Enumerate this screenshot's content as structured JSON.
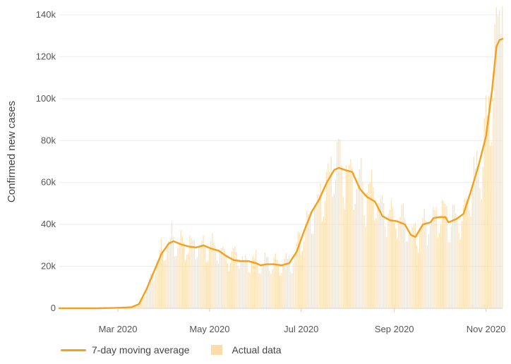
{
  "chart_data": {
    "type": "bar",
    "ylabel": "Confirmed new cases",
    "xlabel": "",
    "ylim": [
      0,
      140000
    ],
    "yticks": [
      0,
      20000,
      40000,
      60000,
      80000,
      100000,
      120000,
      140000
    ],
    "ytick_labels": [
      "0",
      "20k",
      "40k",
      "60k",
      "80k",
      "100k",
      "120k",
      "140k"
    ],
    "xlim": [
      "2020-01-22",
      "2020-11-12"
    ],
    "xticks": [
      "2020-03-01",
      "2020-05-01",
      "2020-07-01",
      "2020-09-01",
      "2020-11-01"
    ],
    "xtick_labels": [
      "Mar 2020",
      "May 2020",
      "Jul 2020",
      "Sep 2020",
      "Nov 2020"
    ],
    "grid": "horizontal",
    "legend_position": "bottom-left",
    "colors": {
      "moving_average": "#f59f1a",
      "actual": "#fbdcaa"
    },
    "series": [
      {
        "name": "7-day moving average",
        "type": "line",
        "points": [
          [
            "2020-01-22",
            0
          ],
          [
            "2020-02-15",
            0
          ],
          [
            "2020-03-01",
            200
          ],
          [
            "2020-03-10",
            500
          ],
          [
            "2020-03-15",
            2000
          ],
          [
            "2020-03-20",
            9000
          ],
          [
            "2020-03-25",
            17500
          ],
          [
            "2020-03-30",
            26000
          ],
          [
            "2020-04-04",
            31000
          ],
          [
            "2020-04-07",
            32000
          ],
          [
            "2020-04-12",
            30500
          ],
          [
            "2020-04-17",
            29500
          ],
          [
            "2020-04-22",
            29000
          ],
          [
            "2020-04-27",
            30000
          ],
          [
            "2020-05-02",
            28500
          ],
          [
            "2020-05-07",
            27500
          ],
          [
            "2020-05-12",
            25000
          ],
          [
            "2020-05-17",
            23000
          ],
          [
            "2020-05-22",
            22500
          ],
          [
            "2020-05-27",
            22500
          ],
          [
            "2020-06-01",
            21500
          ],
          [
            "2020-06-04",
            20500
          ],
          [
            "2020-06-08",
            21000
          ],
          [
            "2020-06-13",
            21000
          ],
          [
            "2020-06-18",
            20500
          ],
          [
            "2020-06-23",
            21500
          ],
          [
            "2020-06-28",
            27000
          ],
          [
            "2020-07-03",
            37000
          ],
          [
            "2020-07-08",
            46000
          ],
          [
            "2020-07-13",
            52000
          ],
          [
            "2020-07-18",
            60000
          ],
          [
            "2020-07-23",
            66000
          ],
          [
            "2020-07-26",
            67000
          ],
          [
            "2020-07-30",
            66000
          ],
          [
            "2020-08-04",
            65000
          ],
          [
            "2020-08-09",
            57000
          ],
          [
            "2020-08-14",
            53000
          ],
          [
            "2020-08-19",
            51000
          ],
          [
            "2020-08-24",
            44000
          ],
          [
            "2020-08-29",
            42000
          ],
          [
            "2020-09-03",
            41500
          ],
          [
            "2020-09-08",
            40000
          ],
          [
            "2020-09-12",
            35000
          ],
          [
            "2020-09-15",
            34000
          ],
          [
            "2020-09-20",
            40000
          ],
          [
            "2020-09-25",
            41000
          ],
          [
            "2020-09-27",
            43000
          ],
          [
            "2020-10-01",
            43500
          ],
          [
            "2020-10-05",
            43500
          ],
          [
            "2020-10-07",
            41000
          ],
          [
            "2020-10-12",
            42500
          ],
          [
            "2020-10-17",
            45000
          ],
          [
            "2020-10-22",
            56000
          ],
          [
            "2020-10-27",
            68000
          ],
          [
            "2020-11-01",
            82000
          ],
          [
            "2020-11-05",
            104000
          ],
          [
            "2020-11-08",
            125000
          ],
          [
            "2020-11-10",
            128000
          ],
          [
            "2020-11-12",
            128500
          ]
        ]
      },
      {
        "name": "Actual data",
        "type": "bar",
        "note": "daily values fluctuate around the moving average (weekly dips, peak near 144k on Nov 12)"
      }
    ]
  },
  "legend": {
    "moving_average_label": "7-day moving average",
    "actual_label": "Actual data"
  }
}
